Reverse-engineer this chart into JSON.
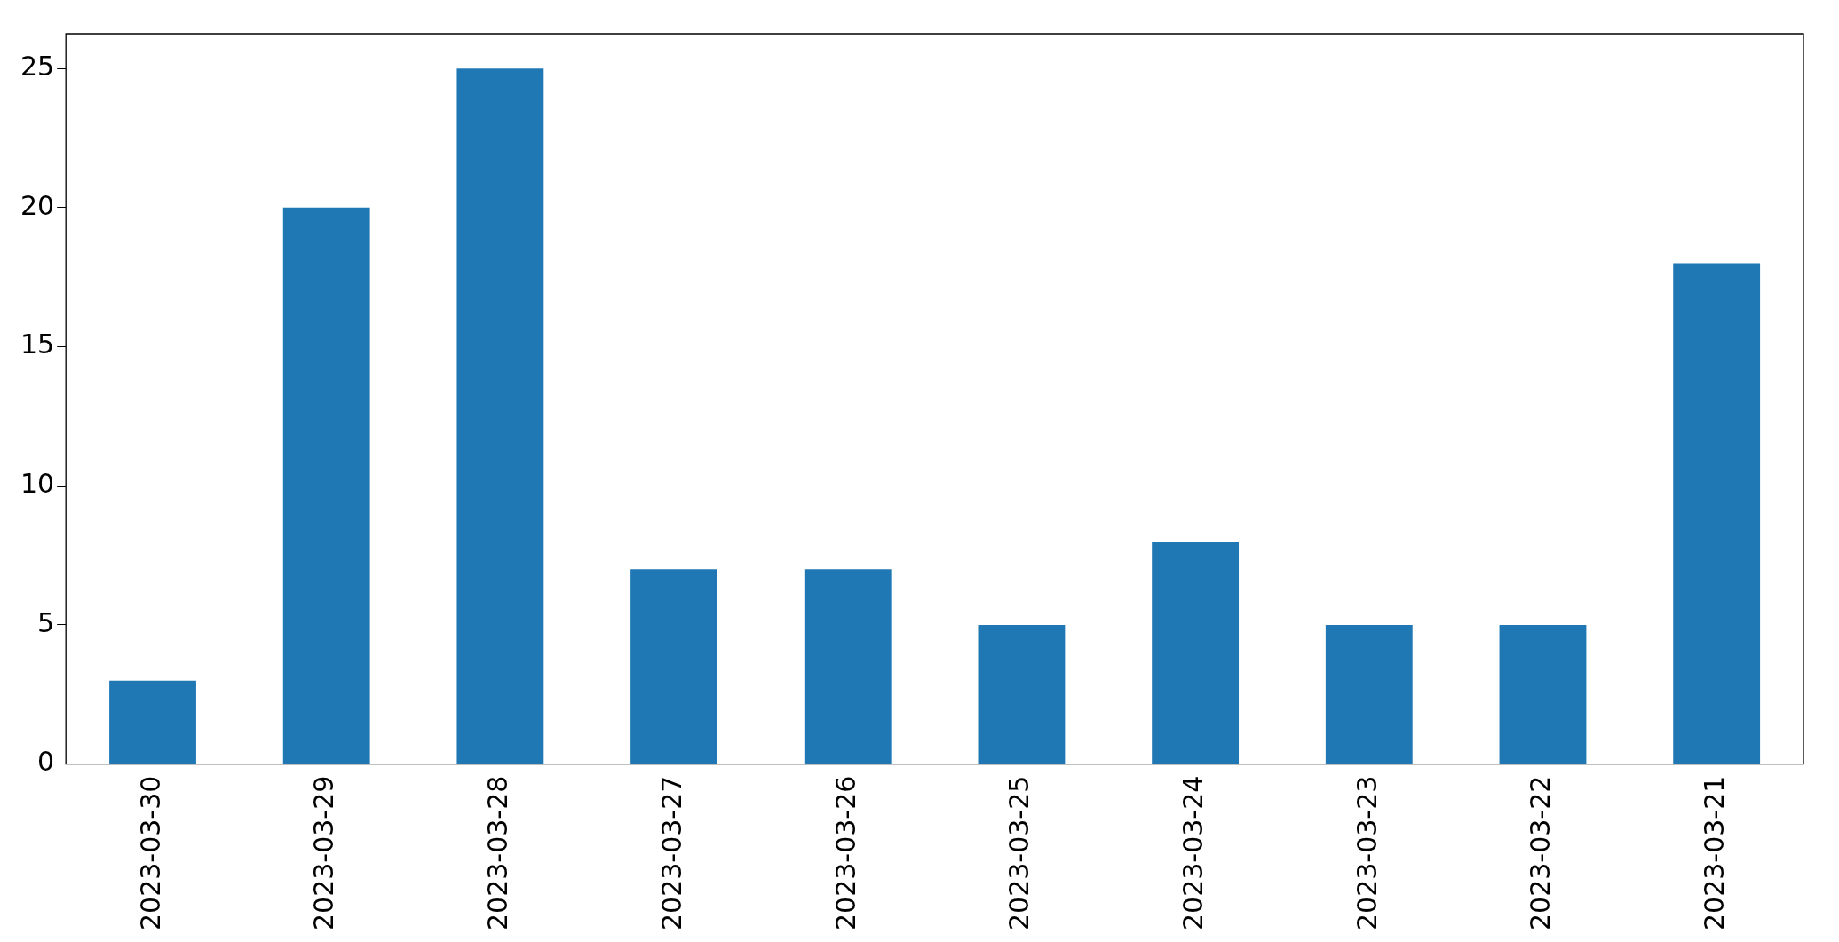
{
  "chart_data": {
    "type": "bar",
    "categories": [
      "2023-03-30",
      "2023-03-29",
      "2023-03-28",
      "2023-03-27",
      "2023-03-26",
      "2023-03-25",
      "2023-03-24",
      "2023-03-23",
      "2023-03-22",
      "2023-03-21"
    ],
    "values": [
      3,
      20,
      25,
      7,
      7,
      5,
      8,
      5,
      5,
      18
    ],
    "color": "#1f77b4",
    "ylim": [
      0,
      26.25
    ],
    "yticks": [
      0,
      5,
      10,
      15,
      20,
      25
    ],
    "grid": false,
    "legend": false
  }
}
